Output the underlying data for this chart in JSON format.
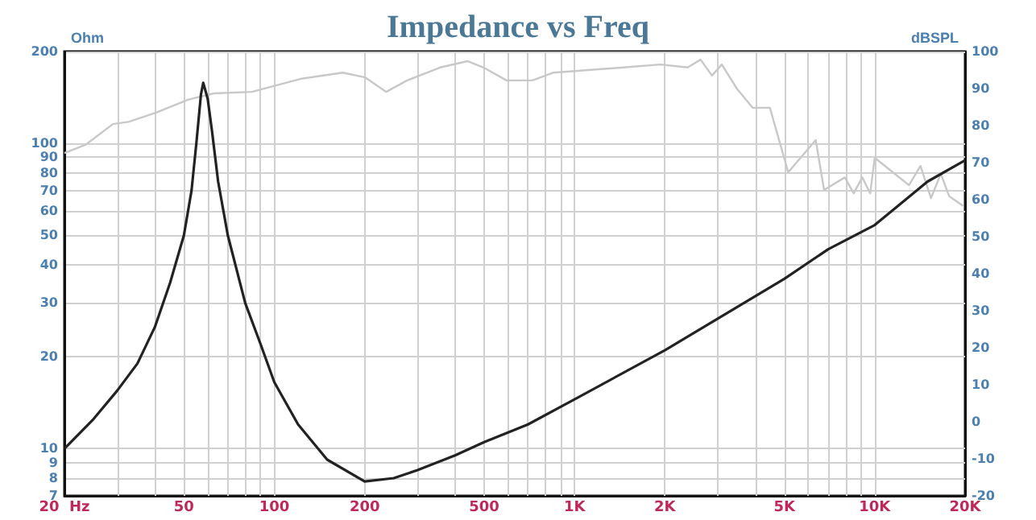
{
  "chart_data": {
    "type": "line",
    "title": "Impedance vs Freq",
    "ylabel": "Ohm",
    "y2label": "dBSPL",
    "log": "xy",
    "xlim": [
      20,
      20000
    ],
    "xticks": [
      {
        "value": 20,
        "label": "20  Hz"
      },
      {
        "value": 30,
        "label": null
      },
      {
        "value": 40,
        "label": null
      },
      {
        "value": 50,
        "label": "50"
      },
      {
        "value": 60,
        "label": null
      },
      {
        "value": 70,
        "label": null
      },
      {
        "value": 80,
        "label": null
      },
      {
        "value": 90,
        "label": null
      },
      {
        "value": 100,
        "label": "100"
      },
      {
        "value": 200,
        "label": "200"
      },
      {
        "value": 300,
        "label": null
      },
      {
        "value": 400,
        "label": null
      },
      {
        "value": 500,
        "label": "500"
      },
      {
        "value": 600,
        "label": null
      },
      {
        "value": 700,
        "label": null
      },
      {
        "value": 800,
        "label": null
      },
      {
        "value": 900,
        "label": null
      },
      {
        "value": 1000,
        "label": "1K"
      },
      {
        "value": 2000,
        "label": "2K"
      },
      {
        "value": 3000,
        "label": null
      },
      {
        "value": 4000,
        "label": null
      },
      {
        "value": 5000,
        "label": "5K"
      },
      {
        "value": 6000,
        "label": null
      },
      {
        "value": 7000,
        "label": null
      },
      {
        "value": 8000,
        "label": null
      },
      {
        "value": 9000,
        "label": null
      },
      {
        "value": 10000,
        "label": "10K"
      },
      {
        "value": 20000,
        "label": "20K"
      }
    ],
    "ylim": [
      7,
      200
    ],
    "yticks": [
      7,
      8,
      9,
      10,
      20,
      30,
      40,
      50,
      60,
      70,
      80,
      90,
      100,
      200
    ],
    "y2lim": [
      -20,
      100
    ],
    "y2ticks": [
      -20,
      -10,
      0,
      10,
      20,
      30,
      40,
      50,
      60,
      70,
      80,
      90,
      100
    ],
    "grid": true,
    "series": [
      {
        "color": "#c8c8c8",
        "axis": "y2",
        "x": [
          20,
          23.5,
          29,
          32.7,
          40.4,
          51.6,
          62.9,
          84.2,
          122,
          169,
          201,
          236,
          277,
          357,
          440,
          497,
          594,
          724,
          851,
          1457,
          1932,
          2382,
          2630,
          2870,
          3095,
          3472,
          3923,
          4475,
          5150,
          6360,
          6780,
          7950,
          8510,
          9090,
          9660,
          10000,
          13000,
          14200,
          15400,
          16600,
          17700,
          19700
        ],
        "values": [
          72.6,
          74.8,
          80.4,
          81,
          83.5,
          87,
          88.7,
          89.1,
          92.6,
          94.3,
          93,
          89.1,
          92.2,
          95.7,
          97.4,
          95.7,
          92.2,
          92.2,
          94.3,
          95.7,
          96.5,
          95.7,
          97.8,
          93.5,
          96.5,
          90,
          84.8,
          84.8,
          67.4,
          76.1,
          62.6,
          66,
          61.7,
          66,
          61.7,
          71.3,
          63.9,
          69.1,
          60.4,
          67,
          60.9,
          58.3
        ]
      },
      {
        "color": "#222222",
        "x": [
          20,
          25,
          30,
          35,
          40,
          45,
          50,
          53,
          55,
          57,
          58,
          60,
          62,
          65,
          70,
          80,
          90,
          100,
          120,
          150,
          200,
          250,
          300,
          400,
          500,
          700,
          1000,
          2000,
          5000,
          7000,
          10000,
          15000,
          20000
        ],
        "values": [
          10,
          12.5,
          15.5,
          19,
          25,
          35,
          50,
          70,
          100,
          145,
          158,
          140,
          110,
          75,
          50,
          30,
          22,
          16.5,
          12,
          9.2,
          7.8,
          8,
          8.5,
          9.5,
          10.5,
          12,
          14.5,
          21,
          36,
          45,
          54,
          75,
          88
        ]
      }
    ]
  }
}
